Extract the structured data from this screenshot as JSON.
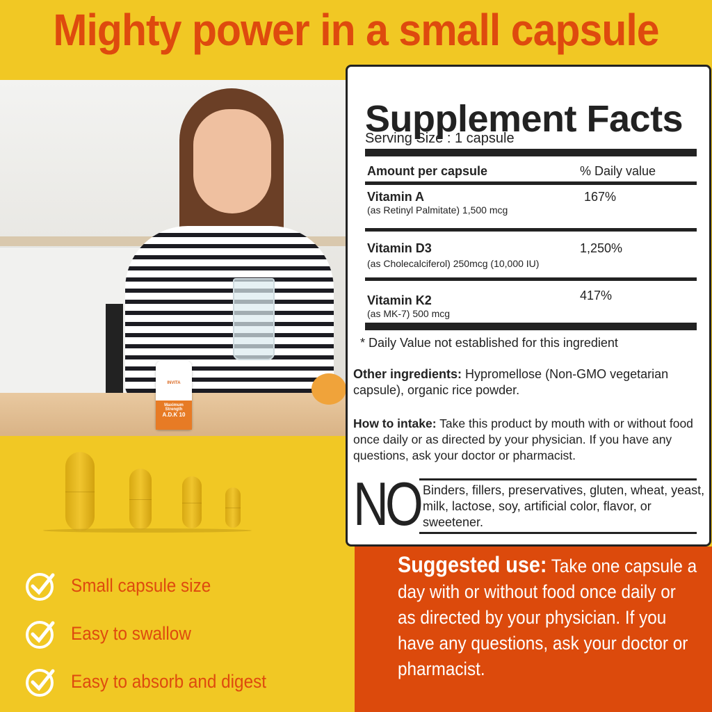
{
  "headline": "Mighty power in a small capsule",
  "bottle": {
    "brand": "INVITA",
    "strength": "Maximum Strength",
    "product": "A.D.K 10"
  },
  "benefits": [
    {
      "label": "Small capsule size",
      "icon": "check-circle-icon"
    },
    {
      "label": "Easy to swallow",
      "icon": "check-circle-icon"
    },
    {
      "label": "Easy to absorb and digest",
      "icon": "check-circle-icon"
    }
  ],
  "facts": {
    "title": "Supplement Facts",
    "serving": "Serving Size : 1 capsule",
    "col_amount": "Amount per capsule",
    "col_dv": "% Daily value",
    "rows": [
      {
        "name": "Vitamin A",
        "detail": "(as Retinyl Palmitate) 1,500 mcg",
        "dv": "167%"
      },
      {
        "name": "Vitamin D3",
        "detail": "(as Cholecalciferol) 250mcg (10,000 IU)",
        "dv": "1,250%"
      },
      {
        "name": "Vitamin K2",
        "detail": "(as MK-7) 500 mcg",
        "dv": "417%"
      }
    ],
    "footnote": "* Daily Value not established for this ingredient",
    "other_label": "Other ingredients:",
    "other_text": "Hypromellose (Non-GMO vegetarian capsule), organic rice powder.",
    "intake_label": "How to intake:",
    "intake_text": "Take this product by mouth with or without food once daily or as directed by your physician. If you have any questions, ask your doctor or pharmacist.",
    "no_label": "NO",
    "no_text": "Binders, fillers, preservatives, gluten, wheat, yeast, milk, lactose, soy, artificial color, flavor, or sweetener."
  },
  "suggested": {
    "label": "Suggested use:",
    "text": "Take one capsule a day with or without food once daily or as directed by your physician. If you have any questions, ask your doctor or pharmacist."
  },
  "colors": {
    "background": "#F1C824",
    "accent": "#DE4A0E",
    "panel": "#DC4A0C"
  }
}
